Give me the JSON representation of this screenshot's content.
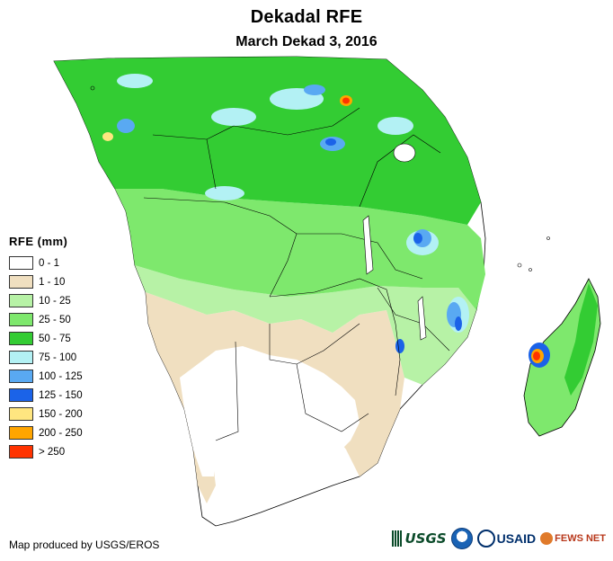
{
  "title": "Dekadal RFE",
  "subtitle": "March Dekad 3, 2016",
  "legend": {
    "title": "RFE (mm)",
    "items": [
      {
        "label": "0 - 1",
        "color": "#ffffff"
      },
      {
        "label": "1 - 10",
        "color": "#f0dfc0"
      },
      {
        "label": "10 - 25",
        "color": "#b7f2a6"
      },
      {
        "label": "25 - 50",
        "color": "#7ee86d"
      },
      {
        "label": "50 - 75",
        "color": "#33cc33"
      },
      {
        "label": "75 - 100",
        "color": "#b3f1f4"
      },
      {
        "label": "100 - 125",
        "color": "#59a9f2"
      },
      {
        "label": "125 - 150",
        "color": "#1b63e8"
      },
      {
        "label": "150 - 200",
        "color": "#ffe680"
      },
      {
        "label": "200 - 250",
        "color": "#ffa500"
      },
      {
        "label": "> 250",
        "color": "#ff3300"
      }
    ]
  },
  "credit": "Map produced by USGS/EROS",
  "logos": {
    "usgs": "USGS",
    "noaa_icon": "noaa-logo-icon",
    "usaid": "USAID",
    "fews": "FEWS NET"
  }
}
